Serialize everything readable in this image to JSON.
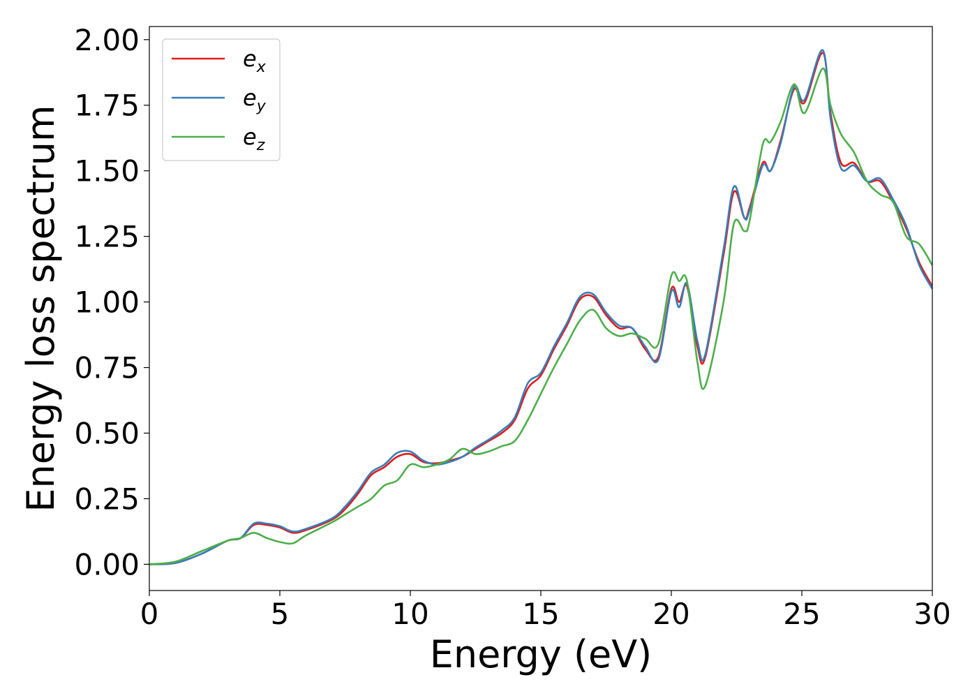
{
  "chart_data": {
    "type": "line",
    "title": "",
    "xlabel": "Energy (eV)",
    "ylabel": "Energy loss spectrum",
    "xlim": [
      0,
      30
    ],
    "ylim": [
      -0.1,
      2.05
    ],
    "xticks": [
      0,
      5,
      10,
      15,
      20,
      25,
      30
    ],
    "xtick_labels": [
      "0",
      "5",
      "10",
      "15",
      "20",
      "25",
      "30"
    ],
    "yticks": [
      0,
      0.25,
      0.5,
      0.75,
      1.0,
      1.25,
      1.5,
      1.75,
      2.0
    ],
    "ytick_labels": [
      "0.00",
      "0.25",
      "0.50",
      "0.75",
      "1.00",
      "1.25",
      "1.50",
      "1.75",
      "2.00"
    ],
    "grid": false,
    "legend": "top-left",
    "series": [
      {
        "name": "e",
        "subscript": "x",
        "color": "#e41a1c",
        "x": [
          0,
          1,
          2,
          3,
          3.5,
          4,
          4.5,
          5,
          5.5,
          6,
          7,
          7.5,
          8,
          8.5,
          9,
          9.5,
          10,
          10.5,
          11,
          11.5,
          12,
          12.5,
          13,
          13.5,
          14,
          14.5,
          15,
          15.5,
          16,
          16.5,
          17,
          17.5,
          18,
          18.5,
          19,
          19.5,
          20,
          20.3,
          20.6,
          21,
          21.3,
          22,
          22.4,
          22.8,
          23,
          23.5,
          23.8,
          24.2,
          24.7,
          25.1,
          25.8,
          26.1,
          26.5,
          27,
          27.5,
          28,
          28.5,
          29,
          29.5,
          30
        ],
        "y": [
          0,
          0.005,
          0.04,
          0.09,
          0.1,
          0.15,
          0.15,
          0.14,
          0.12,
          0.13,
          0.17,
          0.21,
          0.27,
          0.34,
          0.37,
          0.41,
          0.42,
          0.39,
          0.385,
          0.395,
          0.41,
          0.44,
          0.47,
          0.5,
          0.55,
          0.67,
          0.72,
          0.82,
          0.91,
          1.01,
          1.02,
          0.95,
          0.9,
          0.9,
          0.82,
          0.79,
          1.05,
          1.0,
          1.06,
          0.83,
          0.79,
          1.18,
          1.42,
          1.32,
          1.36,
          1.53,
          1.5,
          1.62,
          1.81,
          1.76,
          1.95,
          1.72,
          1.53,
          1.53,
          1.46,
          1.46,
          1.38,
          1.28,
          1.15,
          1.06
        ]
      },
      {
        "name": "e",
        "subscript": "y",
        "color": "#377eb8",
        "x": [
          0,
          1,
          2,
          3,
          3.5,
          4,
          4.5,
          5,
          5.5,
          6,
          7,
          7.5,
          8,
          8.5,
          9,
          9.5,
          10,
          10.5,
          11,
          11.5,
          12,
          12.5,
          13,
          13.5,
          14,
          14.5,
          15,
          15.5,
          16,
          16.5,
          17,
          17.5,
          18,
          18.5,
          19,
          19.5,
          20,
          20.3,
          20.6,
          21,
          21.3,
          22,
          22.4,
          22.8,
          23,
          23.5,
          23.8,
          24.2,
          24.7,
          25.1,
          25.8,
          26.1,
          26.5,
          27,
          27.5,
          28,
          28.5,
          29,
          29.5,
          30
        ],
        "y": [
          0,
          0.005,
          0.04,
          0.09,
          0.1,
          0.155,
          0.155,
          0.145,
          0.125,
          0.135,
          0.175,
          0.22,
          0.28,
          0.35,
          0.38,
          0.425,
          0.43,
          0.395,
          0.38,
          0.39,
          0.41,
          0.445,
          0.475,
          0.51,
          0.56,
          0.69,
          0.73,
          0.83,
          0.92,
          1.02,
          1.03,
          0.96,
          0.91,
          0.9,
          0.83,
          0.78,
          1.04,
          0.98,
          1.07,
          0.85,
          0.8,
          1.2,
          1.44,
          1.32,
          1.35,
          1.52,
          1.5,
          1.61,
          1.82,
          1.77,
          1.96,
          1.7,
          1.51,
          1.52,
          1.46,
          1.47,
          1.39,
          1.29,
          1.14,
          1.05
        ]
      },
      {
        "name": "e",
        "subscript": "z",
        "color": "#4daf4a",
        "x": [
          0,
          1,
          2,
          3,
          3.5,
          4,
          4.5,
          5,
          5.5,
          6,
          7,
          7.5,
          8,
          8.5,
          9,
          9.5,
          10,
          10.5,
          11,
          11.5,
          12,
          12.5,
          13,
          13.5,
          14,
          14.5,
          15,
          15.5,
          16,
          16.5,
          17,
          17.5,
          18,
          18.5,
          19,
          19.5,
          20,
          20.3,
          20.6,
          21,
          21.3,
          22,
          22.4,
          22.8,
          23,
          23.5,
          23.8,
          24.2,
          24.7,
          25.1,
          25.8,
          26.1,
          26.5,
          27,
          27.5,
          28,
          28.5,
          29,
          29.5,
          30
        ],
        "y": [
          0,
          0.01,
          0.05,
          0.09,
          0.1,
          0.12,
          0.1,
          0.085,
          0.08,
          0.11,
          0.16,
          0.19,
          0.22,
          0.25,
          0.3,
          0.32,
          0.38,
          0.37,
          0.38,
          0.4,
          0.44,
          0.42,
          0.43,
          0.45,
          0.47,
          0.55,
          0.65,
          0.75,
          0.84,
          0.93,
          0.97,
          0.9,
          0.87,
          0.88,
          0.86,
          0.84,
          1.1,
          1.08,
          1.08,
          0.77,
          0.68,
          1.0,
          1.3,
          1.27,
          1.31,
          1.6,
          1.61,
          1.69,
          1.83,
          1.72,
          1.89,
          1.75,
          1.64,
          1.57,
          1.46,
          1.41,
          1.38,
          1.25,
          1.22,
          1.14
        ]
      }
    ]
  }
}
